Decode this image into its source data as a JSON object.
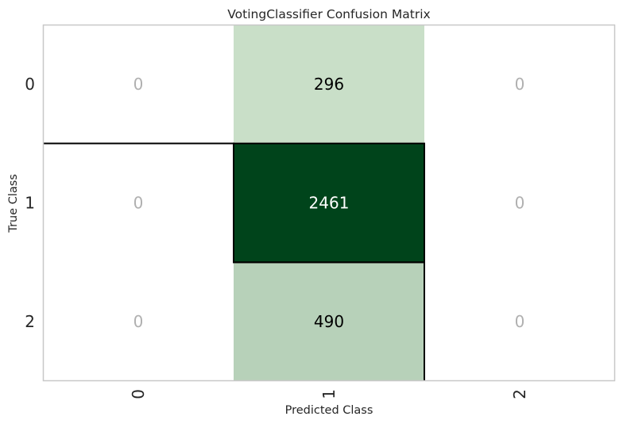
{
  "chart_data": {
    "type": "heatmap",
    "title": "VotingClassifier Confusion Matrix",
    "xlabel": "Predicted Class",
    "ylabel": "True Class",
    "x_categories": [
      "0",
      "1",
      "2"
    ],
    "y_categories": [
      "0",
      "1",
      "2"
    ],
    "values": [
      [
        0,
        296,
        0
      ],
      [
        0,
        2461,
        0
      ],
      [
        0,
        490,
        0
      ]
    ],
    "colormap": "Greens",
    "colors": {
      "zero_cell": "#ffffff",
      "low_cell": "#e5f4e0",
      "high_cell": "#00441b",
      "zero_text": "#b0b0b0",
      "dark_text": "#000000",
      "light_text": "#ffffff",
      "diagonal_outline": "#000000",
      "frame": "#c8c8c8"
    },
    "grid": false,
    "legend": "none"
  }
}
